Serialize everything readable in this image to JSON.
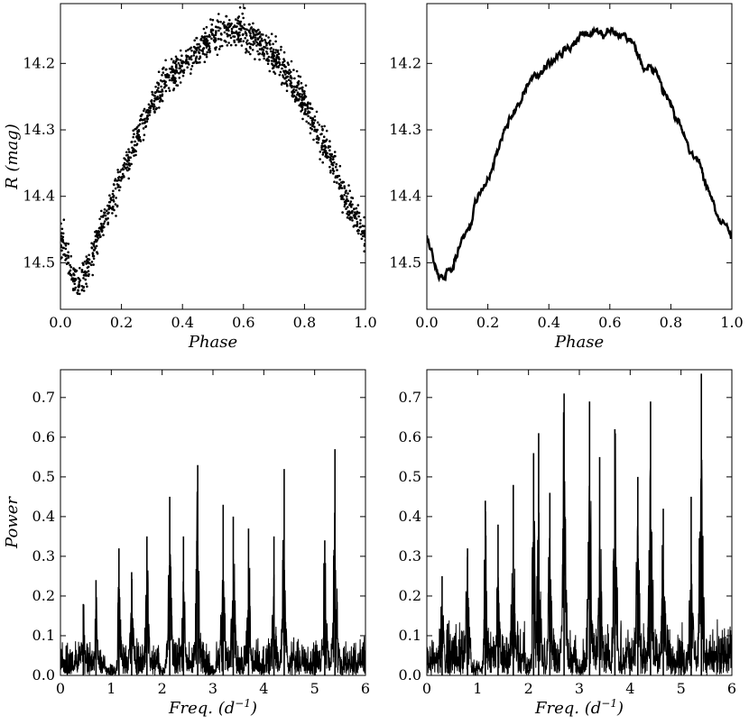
{
  "chart_data": [
    {
      "panel": "top-left",
      "type": "scatter",
      "xlabel": "Phase",
      "ylabel": "R (mag)",
      "xlim": [
        0.0,
        1.0
      ],
      "ylim": [
        14.57,
        14.11
      ],
      "y_inverted": true,
      "xticks": [
        "0.0",
        "0.2",
        "0.4",
        "0.6",
        "0.8",
        "1.0"
      ],
      "yticks": [
        "14.2",
        "14.3",
        "14.4",
        "14.5"
      ],
      "x": [
        0.0,
        0.02,
        0.04,
        0.06,
        0.08,
        0.1,
        0.12,
        0.15,
        0.2,
        0.25,
        0.3,
        0.35,
        0.4,
        0.45,
        0.5,
        0.55,
        0.6,
        0.65,
        0.7,
        0.75,
        0.8,
        0.85,
        0.9,
        0.95,
        1.0
      ],
      "y": [
        14.46,
        14.49,
        14.52,
        14.53,
        14.52,
        14.49,
        14.46,
        14.43,
        14.37,
        14.31,
        14.26,
        14.22,
        14.2,
        14.18,
        14.16,
        14.15,
        14.15,
        14.17,
        14.19,
        14.22,
        14.26,
        14.31,
        14.36,
        14.42,
        14.46
      ],
      "scatter_noise_mag": 0.012
    },
    {
      "panel": "top-right",
      "type": "line",
      "xlabel": "Phase",
      "ylabel": "",
      "xlim": [
        0.0,
        1.0
      ],
      "ylim": [
        14.57,
        14.11
      ],
      "y_inverted": true,
      "xticks": [
        "0.0",
        "0.2",
        "0.4",
        "0.6",
        "0.8",
        "1.0"
      ],
      "yticks": [
        "14.2",
        "14.3",
        "14.4",
        "14.5"
      ],
      "x": [
        0.0,
        0.02,
        0.04,
        0.06,
        0.08,
        0.1,
        0.12,
        0.15,
        0.2,
        0.25,
        0.3,
        0.35,
        0.4,
        0.45,
        0.5,
        0.55,
        0.6,
        0.65,
        0.7,
        0.75,
        0.8,
        0.85,
        0.9,
        0.95,
        1.0
      ],
      "y": [
        14.46,
        14.5,
        14.52,
        14.52,
        14.52,
        14.49,
        14.46,
        14.43,
        14.37,
        14.31,
        14.26,
        14.22,
        14.2,
        14.18,
        14.16,
        14.15,
        14.15,
        14.16,
        14.19,
        14.22,
        14.26,
        14.31,
        14.36,
        14.42,
        14.46
      ]
    },
    {
      "panel": "bottom-left",
      "type": "line",
      "xlabel": "Freq. (d^-1)",
      "ylabel": "Power",
      "xlim": [
        0,
        6
      ],
      "ylim": [
        0,
        0.77
      ],
      "xticks": [
        "0",
        "1",
        "2",
        "3",
        "4",
        "5",
        "6"
      ],
      "yticks": [
        "0.0",
        "0.1",
        "0.2",
        "0.3",
        "0.4",
        "0.5",
        "0.6",
        "0.7"
      ],
      "peaks": [
        {
          "freq": 0.45,
          "power": 0.18
        },
        {
          "freq": 0.7,
          "power": 0.24
        },
        {
          "freq": 1.15,
          "power": 0.32
        },
        {
          "freq": 1.4,
          "power": 0.26
        },
        {
          "freq": 1.7,
          "power": 0.35
        },
        {
          "freq": 2.15,
          "power": 0.45
        },
        {
          "freq": 2.42,
          "power": 0.35
        },
        {
          "freq": 2.7,
          "power": 0.53
        },
        {
          "freq": 3.2,
          "power": 0.43
        },
        {
          "freq": 3.4,
          "power": 0.4
        },
        {
          "freq": 3.7,
          "power": 0.37
        },
        {
          "freq": 4.2,
          "power": 0.35
        },
        {
          "freq": 4.4,
          "power": 0.52
        },
        {
          "freq": 5.2,
          "power": 0.34
        },
        {
          "freq": 5.4,
          "power": 0.57
        }
      ],
      "noise_level": 0.08
    },
    {
      "panel": "bottom-right",
      "type": "line",
      "xlabel": "Freq. (d^-1)",
      "ylabel": "",
      "xlim": [
        0,
        6
      ],
      "ylim": [
        0,
        0.77
      ],
      "xticks": [
        "0",
        "1",
        "2",
        "3",
        "4",
        "5",
        "6"
      ],
      "yticks": [
        "0.0",
        "0.1",
        "0.2",
        "0.3",
        "0.4",
        "0.5",
        "0.6",
        "0.7"
      ],
      "peaks": [
        {
          "freq": 0.3,
          "power": 0.25
        },
        {
          "freq": 0.8,
          "power": 0.32
        },
        {
          "freq": 1.15,
          "power": 0.44
        },
        {
          "freq": 1.4,
          "power": 0.38
        },
        {
          "freq": 1.7,
          "power": 0.48
        },
        {
          "freq": 2.1,
          "power": 0.56
        },
        {
          "freq": 2.2,
          "power": 0.61
        },
        {
          "freq": 2.42,
          "power": 0.46
        },
        {
          "freq": 2.7,
          "power": 0.71
        },
        {
          "freq": 3.2,
          "power": 0.69
        },
        {
          "freq": 3.4,
          "power": 0.55
        },
        {
          "freq": 3.7,
          "power": 0.62
        },
        {
          "freq": 4.15,
          "power": 0.5
        },
        {
          "freq": 4.4,
          "power": 0.69
        },
        {
          "freq": 4.65,
          "power": 0.42
        },
        {
          "freq": 5.2,
          "power": 0.45
        },
        {
          "freq": 5.4,
          "power": 0.76
        }
      ],
      "noise_level": 0.11
    }
  ]
}
